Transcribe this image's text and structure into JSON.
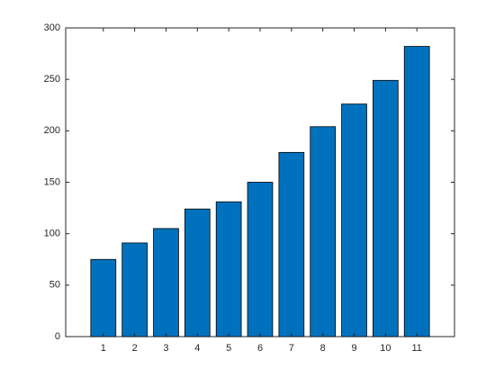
{
  "chart_data": {
    "type": "bar",
    "x": [
      1,
      2,
      3,
      4,
      5,
      6,
      7,
      8,
      9,
      10,
      11
    ],
    "values": [
      75,
      91,
      105,
      124,
      131,
      150,
      179,
      204,
      226,
      249,
      282
    ],
    "color": "#0072bd",
    "xlim": [
      -0.2,
      12.2
    ],
    "xticks": [
      1,
      2,
      3,
      4,
      5,
      6,
      7,
      8,
      9,
      10,
      11
    ],
    "ylim": [
      0,
      300
    ],
    "yticks": [
      0,
      50,
      100,
      150,
      200,
      250,
      300
    ],
    "grid": false
  }
}
